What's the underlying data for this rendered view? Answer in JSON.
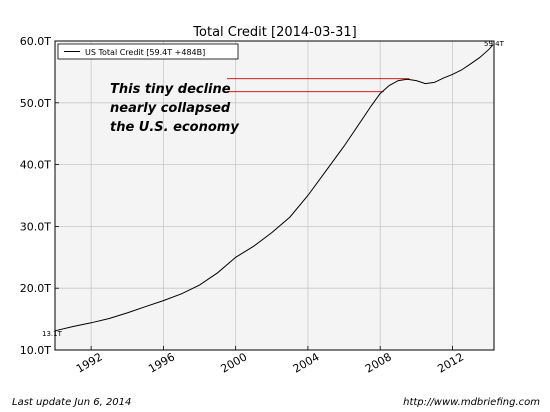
{
  "chart_data": {
    "type": "line",
    "title": "Total Credit  [2014-03-31]",
    "xlabel": "",
    "ylabel": "",
    "xlim": [
      1990.0,
      2014.3
    ],
    "ylim": [
      10.0,
      60.0
    ],
    "x_ticks": [
      1992,
      1996,
      2000,
      2004,
      2008,
      2012
    ],
    "x_tick_labels": [
      "1992",
      "1996",
      "2000",
      "2004",
      "2008",
      "2012"
    ],
    "y_ticks": [
      10,
      20,
      30,
      40,
      50,
      60
    ],
    "y_tick_labels": [
      "10.0T",
      "20.0T",
      "30.0T",
      "40.0T",
      "50.0T",
      "60.0T"
    ],
    "grid": true,
    "legend": {
      "placement": "top-left",
      "entries": [
        "US Total Credit [59.4T +484B]"
      ]
    },
    "series": [
      {
        "name": "US Total Credit [59.4T +484B]",
        "color": "#000000",
        "x": [
          1990.0,
          1991.0,
          1992.0,
          1993.0,
          1994.0,
          1995.0,
          1996.0,
          1997.0,
          1998.0,
          1999.0,
          2000.0,
          2001.0,
          2002.0,
          2003.0,
          2004.0,
          2005.0,
          2006.0,
          2007.0,
          2007.5,
          2008.0,
          2008.5,
          2009.0,
          2009.5,
          2010.0,
          2010.5,
          2011.0,
          2011.5,
          2012.0,
          2012.5,
          2013.0,
          2013.5,
          2014.0,
          2014.25
        ],
        "y": [
          13.1,
          13.8,
          14.4,
          15.1,
          16.0,
          17.0,
          18.0,
          19.1,
          20.5,
          22.5,
          25.0,
          26.8,
          29.0,
          31.5,
          35.0,
          39.0,
          43.0,
          47.3,
          49.5,
          51.5,
          52.8,
          53.6,
          53.8,
          53.6,
          53.1,
          53.3,
          54.0,
          54.6,
          55.3,
          56.3,
          57.3,
          58.6,
          59.4
        ]
      }
    ],
    "annotations": {
      "start_value_label": "13.1T",
      "end_value_label": "59.4T",
      "note_lines": [
        "This tiny decline",
        "nearly collapsed",
        "the U.S. economy"
      ],
      "note_color": "#000000",
      "marker_color": "#cc0000",
      "marker_levels": [
        53.9,
        51.8
      ]
    }
  },
  "footer": {
    "left": "Last update Jun  6, 2014",
    "right": "http://www.mdbriefing.com"
  }
}
